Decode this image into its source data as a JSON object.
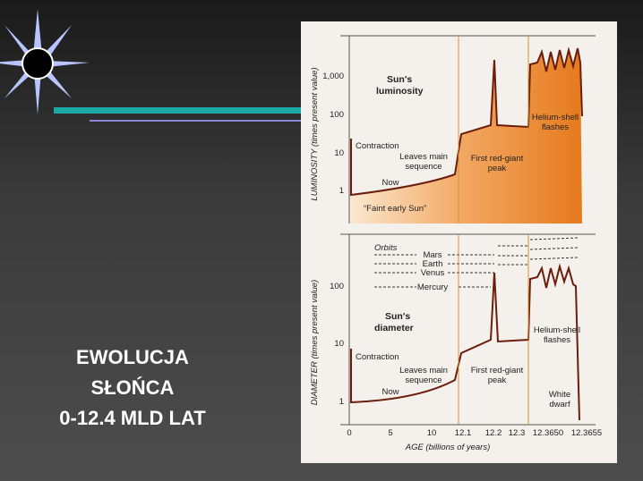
{
  "slide": {
    "title_lines": [
      "EWOLUCJA",
      "SŁOŃCA",
      "0-12.4 MLD LAT"
    ]
  },
  "figure": {
    "x_axis_label": "AGE (billions of years)",
    "x_ticks": [
      "0",
      "5",
      "10",
      "12.1",
      "12.2",
      "12.3",
      "12.3650",
      "12.3655"
    ],
    "luminosity_panel": {
      "y_axis_label": "LUMINOSITY (times present value)",
      "y_ticks": [
        "1,000",
        "100",
        "10",
        "1"
      ],
      "title": "Sun's luminosity",
      "annotations": [
        "Contraction",
        "Leaves main sequence",
        "Now",
        "“Faint early Sun”",
        "First red-giant peak",
        "Helium-shell flashes"
      ]
    },
    "diameter_panel": {
      "y_axis_label": "DIAMETER (times present value)",
      "y_ticks": [
        "100",
        "10",
        "1"
      ],
      "title": "Sun's diameter",
      "orbits_label": "Orbits",
      "orbits": [
        "Mars",
        "Earth",
        "Venus",
        "Mercury"
      ],
      "annotations": [
        "Contraction",
        "Leaves main sequence",
        "Now",
        "First red-giant peak",
        "Helium-shell flashes",
        "White dwarf"
      ]
    }
  }
}
